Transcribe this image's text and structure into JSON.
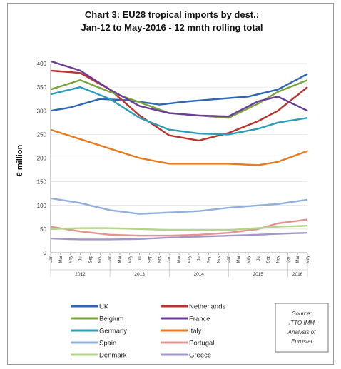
{
  "chart_data": {
    "type": "line",
    "title_lines": [
      "Chart 3: EU28 tropical imports by dest.:",
      "Jan-12 to May-2016 - 12 mnth rolling total"
    ],
    "ylabel": "€ million",
    "ylim": [
      0,
      400
    ],
    "y_ticks": [
      0,
      50,
      100,
      150,
      200,
      250,
      300,
      350,
      400
    ],
    "x_month_labels": [
      "Jan",
      "Mar",
      "May",
      "Jul",
      "Sep",
      "Nov",
      "Jan",
      "Mar",
      "May",
      "Jul",
      "Sep",
      "Nov",
      "Jan",
      "Mar",
      "May",
      "Jul",
      "Sep",
      "Nov",
      "Jan",
      "Mar",
      "May",
      "Jul",
      "Sep",
      "Nov",
      "Jan",
      "Mar",
      "May"
    ],
    "x_year_labels": [
      "2012",
      "2013",
      "2014",
      "2015",
      "2016"
    ],
    "n_points": 53,
    "grid": "horizontal",
    "legend_position": "bottom-left",
    "series": [
      {
        "name": "UK",
        "color": "#2e66b5",
        "knots": [
          [
            0,
            300
          ],
          [
            4,
            307
          ],
          [
            10,
            325
          ],
          [
            16,
            322
          ],
          [
            22,
            313
          ],
          [
            28,
            320
          ],
          [
            34,
            325
          ],
          [
            40,
            330
          ],
          [
            46,
            345
          ],
          [
            52,
            378
          ]
        ]
      },
      {
        "name": "Netherlands",
        "color": "#b8342d",
        "knots": [
          [
            0,
            385
          ],
          [
            6,
            380
          ],
          [
            12,
            345
          ],
          [
            18,
            290
          ],
          [
            24,
            248
          ],
          [
            30,
            237
          ],
          [
            36,
            253
          ],
          [
            42,
            278
          ],
          [
            46,
            300
          ],
          [
            52,
            350
          ]
        ]
      },
      {
        "name": "Belgium",
        "color": "#78a43c",
        "knots": [
          [
            0,
            345
          ],
          [
            6,
            365
          ],
          [
            12,
            340
          ],
          [
            18,
            318
          ],
          [
            24,
            295
          ],
          [
            30,
            290
          ],
          [
            36,
            285
          ],
          [
            42,
            315
          ],
          [
            46,
            340
          ],
          [
            52,
            365
          ]
        ]
      },
      {
        "name": "France",
        "color": "#6b3d9a",
        "knots": [
          [
            0,
            405
          ],
          [
            6,
            385
          ],
          [
            12,
            345
          ],
          [
            18,
            310
          ],
          [
            24,
            295
          ],
          [
            30,
            290
          ],
          [
            36,
            288
          ],
          [
            42,
            320
          ],
          [
            46,
            330
          ],
          [
            52,
            300
          ]
        ]
      },
      {
        "name": "Germany",
        "color": "#2a9db8",
        "knots": [
          [
            0,
            335
          ],
          [
            6,
            350
          ],
          [
            12,
            325
          ],
          [
            18,
            285
          ],
          [
            24,
            260
          ],
          [
            30,
            252
          ],
          [
            36,
            250
          ],
          [
            42,
            262
          ],
          [
            46,
            275
          ],
          [
            52,
            285
          ]
        ]
      },
      {
        "name": "Italy",
        "color": "#e87a1e",
        "knots": [
          [
            0,
            260
          ],
          [
            6,
            240
          ],
          [
            12,
            220
          ],
          [
            18,
            200
          ],
          [
            24,
            188
          ],
          [
            30,
            188
          ],
          [
            36,
            188
          ],
          [
            42,
            185
          ],
          [
            46,
            192
          ],
          [
            52,
            215
          ]
        ]
      },
      {
        "name": "Spain",
        "color": "#92b0de",
        "knots": [
          [
            0,
            115
          ],
          [
            6,
            105
          ],
          [
            12,
            90
          ],
          [
            18,
            82
          ],
          [
            24,
            85
          ],
          [
            30,
            88
          ],
          [
            36,
            95
          ],
          [
            42,
            100
          ],
          [
            46,
            103
          ],
          [
            52,
            112
          ]
        ]
      },
      {
        "name": "Portugal",
        "color": "#e29590",
        "knots": [
          [
            0,
            55
          ],
          [
            6,
            45
          ],
          [
            12,
            38
          ],
          [
            18,
            36
          ],
          [
            24,
            36
          ],
          [
            30,
            38
          ],
          [
            36,
            42
          ],
          [
            42,
            50
          ],
          [
            46,
            62
          ],
          [
            52,
            70
          ]
        ]
      },
      {
        "name": "Denmark",
        "color": "#b5d48e",
        "knots": [
          [
            0,
            50
          ],
          [
            6,
            52
          ],
          [
            12,
            52
          ],
          [
            18,
            50
          ],
          [
            24,
            48
          ],
          [
            30,
            48
          ],
          [
            36,
            48
          ],
          [
            42,
            52
          ],
          [
            46,
            55
          ],
          [
            52,
            57
          ]
        ]
      },
      {
        "name": "Greece",
        "color": "#a596c9",
        "knots": [
          [
            0,
            30
          ],
          [
            6,
            28
          ],
          [
            12,
            28
          ],
          [
            18,
            29
          ],
          [
            24,
            32
          ],
          [
            30,
            34
          ],
          [
            36,
            36
          ],
          [
            42,
            38
          ],
          [
            46,
            40
          ],
          [
            52,
            42
          ]
        ]
      }
    ]
  },
  "source_box": {
    "lines": [
      "Source:",
      "ITTO IMM",
      "Analysis of",
      "Eurostat"
    ]
  }
}
